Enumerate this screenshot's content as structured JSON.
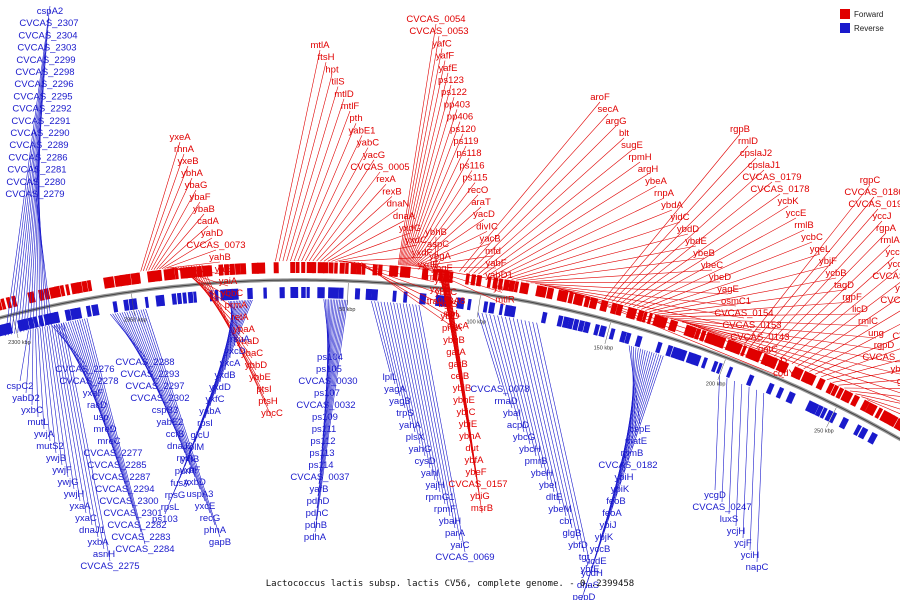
{
  "caption": "Lactococcus lactis subsp. lactis CV56, complete genome. - 0..2399458",
  "legend": [
    {
      "label": "Forward",
      "color": "#e00000"
    },
    {
      "label": "Reverse",
      "color": "#1a1acc"
    }
  ],
  "ticks": [
    "2300 kbp",
    "2350 kbp",
    "50 kbp",
    "100 kbp",
    "150 kbp",
    "200 kbp",
    "250 kbp"
  ],
  "forward_labels": [
    "CVCAS_0054",
    "CVCAS_0053",
    "yafC",
    "yafF",
    "yafE",
    "ps123",
    "ps122",
    "pp403",
    "pp406",
    "ps120",
    "ps119",
    "ps118",
    "ps116",
    "ps115",
    "recO",
    "araT",
    "yacD",
    "divIC",
    "yacB",
    "mfd",
    "yabF",
    "yabD1",
    "yacI",
    "mtlR",
    "mtlA",
    "ftsH",
    "hpt",
    "tilS",
    "mtlD",
    "mtlF",
    "pth",
    "yabE1",
    "yabC",
    "yacG",
    "CVCAS_0005",
    "rexA",
    "rexB",
    "dnaN",
    "dnaA",
    "yxdG",
    "yxdC",
    "yxdF",
    "yxdE",
    "trmE",
    "yxcB",
    "tra983A8",
    "sipL",
    "dacA",
    "yxeA",
    "rhnA",
    "yxeB",
    "ybhA",
    "ybaG",
    "ybaF",
    "ybaB",
    "cadA",
    "yahD",
    "CVCAS_0073",
    "yahB",
    "yaiB",
    "yaiA",
    "ybbC",
    "prmA",
    "relA",
    "ybaA",
    "ybaD",
    "ybaC",
    "ybbD",
    "ybbE",
    "ptsI",
    "ptsH",
    "ybcC",
    "aroF",
    "secA",
    "argG",
    "blt",
    "sugE",
    "rpmH",
    "argH",
    "ybeA",
    "rnpA",
    "ybdA",
    "yidC",
    "ybdD",
    "ybdE",
    "ybeB",
    "ybeC",
    "ybeD",
    "yagE",
    "osmC1",
    "CVCAS_0154",
    "CVCAS_0153",
    "CVCAS_0143",
    "gatC",
    "ybhD",
    "codY",
    "ybhB",
    "aspC",
    "ybgA",
    "ybgE",
    "ybfC",
    "ybhC",
    "bglS",
    "yblD",
    "preA",
    "ybgB",
    "gatA",
    "gatB",
    "celB",
    "ybiB",
    "ybhE",
    "ybiC",
    "ybiE",
    "ybhA",
    "dut",
    "ybfA",
    "ybeF",
    "CVCAS_0157",
    "ybiG",
    "msrB",
    "rgpB",
    "rmlD",
    "cpslaJ2",
    "cpslaJ1",
    "CVCAS_0179",
    "CVCAS_0178",
    "ycbK",
    "yccE",
    "rmlB",
    "ycbC",
    "yqeL",
    "ybjF",
    "ycbB",
    "tagD",
    "rgpF",
    "licD",
    "rmlC",
    "ung",
    "rgpD",
    "CVCAS_0191",
    "ybjD",
    "guaB",
    "yccL",
    "ybjB",
    "rgpC",
    "CVCAS_0186",
    "CVCAS_0190",
    "yccJ",
    "rgpA",
    "rmlA",
    "yccI",
    "ycdF",
    "CVCAS_0189",
    "yceD",
    "CVCAS_0188",
    "yceA",
    "glpF",
    "CVCAS_0199",
    "rpsU",
    "nadD1",
    "dhaL",
    "dhaK2",
    "rmeC",
    "dhaK1",
    "ycfI",
    "fbp"
  ],
  "reverse_labels": [
    "cspA2",
    "CVCAS_2307",
    "CVCAS_2304",
    "CVCAS_2303",
    "CVCAS_2299",
    "CVCAS_2298",
    "CVCAS_2296",
    "CVCAS_2295",
    "CVCAS_2292",
    "CVCAS_2291",
    "CVCAS_2290",
    "CVCAS_2289",
    "CVCAS_2286",
    "CVCAS_2281",
    "CVCAS_2280",
    "CVCAS_2279",
    "cspC2",
    "yabD2",
    "yxbC",
    "mutL",
    "ywjA",
    "mutS2",
    "ywjB",
    "ywjF",
    "ywjG",
    "ywjH",
    "yxaA",
    "yxaC",
    "dnaJ1",
    "yxbA",
    "asnH",
    "CVCAS_2275",
    "CVCAS_2276",
    "CVCAS_2278",
    "yxaF",
    "racD",
    "usp",
    "mreD",
    "mreC",
    "CVCAS_2277",
    "CVCAS_2285",
    "CVCAS_2287",
    "CVCAS_2294",
    "CVCAS_2300",
    "CVCAS_2301",
    "CVCAS_2282",
    "CVCAS_2283",
    "CVCAS_2284",
    "CVCAS_2288",
    "CVCAS_2293",
    "CVCAS_2297",
    "CVCAS_2302",
    "cspB3",
    "yabE2",
    "ccfB",
    "dnaJ2",
    "rpiA",
    "yxbF",
    "yxbD",
    "uspA3",
    "yxcE",
    "recG",
    "phnA",
    "gapB",
    "rsuA",
    "yxcD",
    "yxcA",
    "yxdB",
    "yxdD",
    "yxfC",
    "yabA",
    "rpsI",
    "glcU",
    "rplM",
    "yxfB",
    "purR",
    "fusA",
    "rpsG",
    "rpsL",
    "ps103",
    "ps104",
    "ps105",
    "CVCAS_0030",
    "ps107",
    "CVCAS_0032",
    "ps109",
    "ps111",
    "ps112",
    "ps113",
    "ps114",
    "CVCAS_0037",
    "yafB",
    "pdhD",
    "pdhC",
    "pdhB",
    "pdhA",
    "lplL",
    "yagA",
    "yagB",
    "trpS",
    "yahA",
    "plsX",
    "yahG",
    "cysD",
    "yahI",
    "yajH",
    "rpmG1",
    "rpmF",
    "ybaH",
    "parA",
    "yaiC",
    "CVCAS_0069",
    "CVCAS_0078",
    "rmaD",
    "ybaI",
    "acpD",
    "ybcG",
    "ybcH",
    "pmrB",
    "ybeH",
    "ybeI",
    "dltE",
    "ybeM",
    "cbr",
    "glgB",
    "ybfD",
    "tgt",
    "ybfE",
    "cspE",
    "matE",
    "rpmB",
    "CVCAS_0182",
    "ybiH",
    "ybiK",
    "feoB",
    "feoA",
    "ybiJ",
    "ybjK",
    "yccB",
    "ycdE",
    "ycdH",
    "dhaS",
    "pepD",
    "ycfF",
    "ycgD",
    "CVCAS_0247",
    "luxS",
    "ycjH",
    "ycjF",
    "yciH",
    "napC"
  ]
}
